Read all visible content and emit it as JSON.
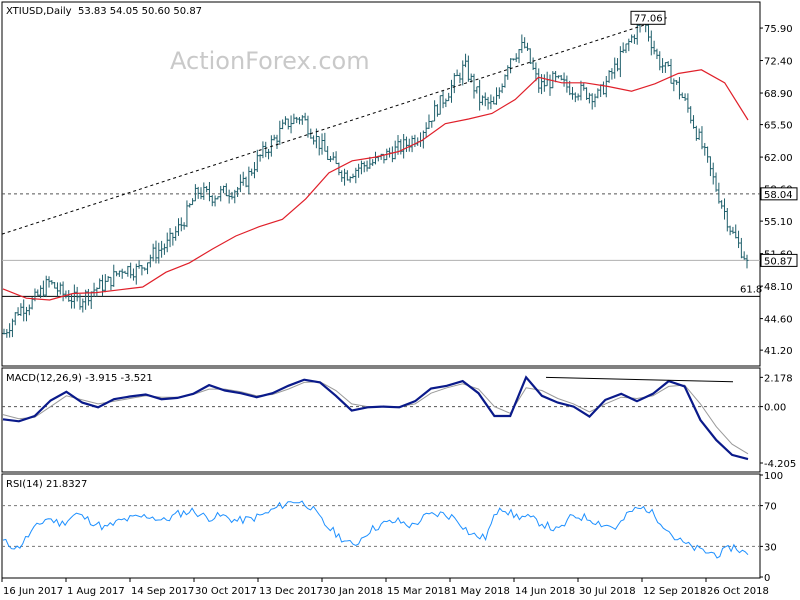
{
  "watermark": "ActionForex.com",
  "colors": {
    "background": "#ffffff",
    "bar": "#1f5f6b",
    "moving_average": "#e0202a",
    "macd": "#0a1a8a",
    "macd_signal": "#9a9a9a",
    "rsi": "#1e90ff",
    "grid_dash": "#555555",
    "label_box_fill": "#ffffff"
  },
  "chart_data": [
    {
      "type": "ohlc",
      "title": "XTIUSD,Daily",
      "ohlc_text": "53.83 54.05 50.60 50.87",
      "y_ticks": [
        "75.90",
        "72.40",
        "68.90",
        "65.50",
        "62.00",
        "58.60",
        "55.10",
        "51.60",
        "48.10",
        "44.60",
        "41.20"
      ],
      "ylim": [
        39.6,
        78.6
      ],
      "x_ticks": [
        "16 Jun 2017",
        "1 Aug 2017",
        "14 Sep 2017",
        "30 Oct 2017",
        "13 Dec 2017",
        "30 Jan 2018",
        "15 Mar 2018",
        "1 May 2018",
        "14 Jun 2018",
        "30 Jul 2018",
        "12 Sep 2018",
        "26 Oct 2018"
      ],
      "price_path": [
        43.0,
        45.6,
        46.5,
        48.5,
        47.2,
        46.5,
        47.7,
        48.5,
        50.1,
        49.8,
        51.5,
        52.6,
        54.9,
        58.3,
        57.8,
        58.3,
        58.7,
        61.6,
        63.5,
        65.6,
        66.4,
        64.0,
        61.5,
        60.1,
        61.0,
        61.5,
        62.5,
        63.3,
        64.5,
        67.0,
        69.3,
        71.8,
        68.2,
        67.4,
        72.7,
        74.0,
        69.6,
        70.3,
        69.5,
        69.0,
        68.6,
        71.3,
        74.2,
        76.9,
        72.5,
        70.5,
        67.3,
        63.0,
        58.3,
        53.8,
        50.87
      ],
      "ma_path": [
        47.8,
        46.8,
        46.6,
        47.3,
        47.4,
        47.7,
        48.0,
        49.6,
        50.6,
        52.1,
        53.5,
        54.5,
        55.3,
        57.5,
        60.3,
        61.6,
        62.0,
        62.6,
        63.8,
        65.6,
        66.1,
        66.7,
        68.2,
        70.6,
        70.0,
        70.0,
        69.6,
        69.1,
        69.9,
        71.0,
        71.4,
        70.0,
        66.0
      ],
      "label_high": "77.06",
      "label_current": "50.87",
      "label_support": "58.04",
      "label_fib": "61.8",
      "last_price": 50.87,
      "support_level": 58.04,
      "fib_level": 47.0,
      "high_value": 77.06,
      "trendline_values": [
        53.7,
        77.06
      ]
    },
    {
      "type": "line",
      "title": "MACD(12,26,9) -3.915 -3.521",
      "y_ticks": [
        "2.178",
        "0.00",
        "-4.205"
      ],
      "ylim": [
        -4.8,
        2.8
      ],
      "macd_path": [
        -0.95,
        -1.1,
        -0.7,
        0.45,
        1.1,
        0.3,
        -0.05,
        0.55,
        0.75,
        0.9,
        0.55,
        0.65,
        0.95,
        1.6,
        1.2,
        1.0,
        0.7,
        1.0,
        1.55,
        2.0,
        1.8,
        0.8,
        -0.3,
        -0.05,
        0.0,
        -0.05,
        0.4,
        1.35,
        1.55,
        1.9,
        1.0,
        -0.7,
        -0.7,
        2.178,
        0.8,
        0.3,
        0.0,
        -0.75,
        0.5,
        0.95,
        0.4,
        0.95,
        1.9,
        1.5,
        -1.0,
        -2.5,
        -3.6,
        -3.915
      ],
      "signal_path": [
        -0.6,
        -0.9,
        -0.8,
        0.0,
        0.8,
        0.5,
        0.2,
        0.4,
        0.6,
        0.8,
        0.7,
        0.7,
        0.9,
        1.3,
        1.3,
        1.1,
        0.8,
        0.9,
        1.3,
        1.8,
        1.85,
        1.2,
        0.2,
        0.0,
        0.0,
        0.0,
        0.2,
        1.0,
        1.4,
        1.7,
        1.3,
        0.0,
        -0.5,
        1.4,
        1.2,
        0.6,
        0.2,
        -0.4,
        0.2,
        0.7,
        0.6,
        0.8,
        1.5,
        1.6,
        0.2,
        -1.5,
        -2.8,
        -3.521
      ],
      "trendline_values": [
        2.178,
        1.85
      ]
    },
    {
      "type": "line",
      "title": "RSI(14) 21.8327",
      "y_ticks": [
        "100",
        "70",
        "30",
        "0"
      ],
      "ylim": [
        0,
        100
      ],
      "levels": [
        70,
        30
      ],
      "rsi_path": [
        35,
        28,
        45,
        58,
        52,
        62,
        55,
        48,
        55,
        58,
        60,
        55,
        62,
        65,
        58,
        60,
        55,
        57,
        62,
        70,
        75,
        70,
        52,
        40,
        30,
        45,
        52,
        55,
        50,
        60,
        62,
        58,
        42,
        38,
        70,
        60,
        58,
        52,
        45,
        60,
        58,
        52,
        48,
        65,
        68,
        55,
        38,
        30,
        25,
        22,
        30,
        21.8327
      ]
    }
  ]
}
